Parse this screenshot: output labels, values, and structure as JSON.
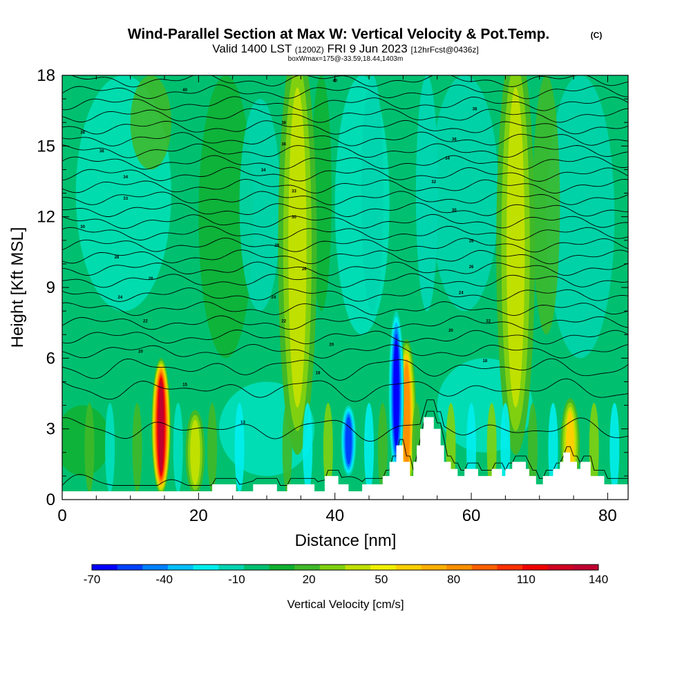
{
  "chart_data": {
    "type": "heatmap",
    "title": "Wind-Parallel Section at Max W: Vertical Velocity & Pot.Temp.",
    "title_mark": "(C)",
    "subtitle_main": "Valid 1400 LST",
    "subtitle_utc": "(1200Z)",
    "subtitle_date": "FRI 9 Jun 2023",
    "subtitle_fcst": "[12hrFcst@0436z]",
    "subtitle_box": "boxWmax=175@-33.59,18.44,1403m",
    "xlabel": "Distance [nm]",
    "ylabel": "Height [Kft MSL]",
    "xlim": [
      0,
      83
    ],
    "ylim": [
      0,
      18
    ],
    "xticks": [
      0,
      20,
      40,
      60,
      80
    ],
    "yticks": [
      0,
      3,
      6,
      9,
      12,
      15,
      18
    ],
    "colorbar": {
      "label": "Vertical Velocity [cm/s]",
      "tick_labels": [
        "-70",
        "-40",
        "-10",
        "20",
        "50",
        "80",
        "110",
        "140"
      ],
      "colors": [
        "#0000ff",
        "#0040ff",
        "#0080ff",
        "#00bfff",
        "#00eeee",
        "#00d5b0",
        "#00c070",
        "#10b030",
        "#40b828",
        "#80d010",
        "#c0e000",
        "#f0f000",
        "#ffd000",
        "#ffb000",
        "#ff9000",
        "#ff6000",
        "#ff3000",
        "#f00000",
        "#d00020",
        "#c00030"
      ]
    },
    "updraft_cores": [
      {
        "x": 14.5,
        "ytop": 6.2,
        "w_max": 140
      },
      {
        "x": 19.5,
        "ytop": 4.0,
        "w_max": 50
      },
      {
        "x": 34.5,
        "ytop": 18,
        "w_max": 50
      },
      {
        "x": 50.5,
        "ytop": 7.0,
        "w_max": 80
      },
      {
        "x": 66.5,
        "ytop": 18,
        "w_max": 55
      },
      {
        "x": 74.5,
        "ytop": 4.5,
        "w_max": 60
      }
    ],
    "downdraft_cores": [
      {
        "x": 42.0,
        "ytop": 4.0,
        "w_min": -60
      },
      {
        "x": 49.0,
        "ytop": 8.0,
        "w_min": -70
      },
      {
        "x": 45.5,
        "ytop": 18,
        "w_min": -20
      },
      {
        "x": 53.5,
        "ytop": 18,
        "w_min": -15
      }
    ],
    "terrain": [
      {
        "x": 0,
        "h": 0.35
      },
      {
        "x": 22,
        "h": 0.35
      },
      {
        "x": 22,
        "h": 0.65
      },
      {
        "x": 25.5,
        "h": 0.65
      },
      {
        "x": 25.5,
        "h": 0.35
      },
      {
        "x": 28,
        "h": 0.35
      },
      {
        "x": 28,
        "h": 0.65
      },
      {
        "x": 31.5,
        "h": 0.65
      },
      {
        "x": 31.5,
        "h": 0.35
      },
      {
        "x": 33,
        "h": 0.35
      },
      {
        "x": 33,
        "h": 0.65
      },
      {
        "x": 37,
        "h": 0.65
      },
      {
        "x": 37,
        "h": 0.35
      },
      {
        "x": 38.5,
        "h": 0.35
      },
      {
        "x": 38.5,
        "h": 1.0
      },
      {
        "x": 40.5,
        "h": 1.0
      },
      {
        "x": 40.5,
        "h": 0.65
      },
      {
        "x": 42,
        "h": 0.65
      },
      {
        "x": 42,
        "h": 0.35
      },
      {
        "x": 44,
        "h": 0.35
      },
      {
        "x": 44,
        "h": 0.65
      },
      {
        "x": 47,
        "h": 0.65
      },
      {
        "x": 47,
        "h": 1.0
      },
      {
        "x": 48,
        "h": 1.0
      },
      {
        "x": 48,
        "h": 1.6
      },
      {
        "x": 49,
        "h": 1.6
      },
      {
        "x": 49,
        "h": 2.3
      },
      {
        "x": 50,
        "h": 2.3
      },
      {
        "x": 50,
        "h": 1.6
      },
      {
        "x": 51,
        "h": 1.6
      },
      {
        "x": 51,
        "h": 1.0
      },
      {
        "x": 51.5,
        "h": 1.0
      },
      {
        "x": 51.5,
        "h": 1.6
      },
      {
        "x": 52,
        "h": 1.6
      },
      {
        "x": 52,
        "h": 2.3
      },
      {
        "x": 52.5,
        "h": 2.3
      },
      {
        "x": 52.5,
        "h": 3.0
      },
      {
        "x": 53,
        "h": 3.0
      },
      {
        "x": 53,
        "h": 3.5
      },
      {
        "x": 54.5,
        "h": 3.5
      },
      {
        "x": 54.5,
        "h": 3.0
      },
      {
        "x": 55.5,
        "h": 3.0
      },
      {
        "x": 55.5,
        "h": 2.3
      },
      {
        "x": 56,
        "h": 2.3
      },
      {
        "x": 56,
        "h": 1.6
      },
      {
        "x": 57,
        "h": 1.6
      },
      {
        "x": 57,
        "h": 1.3
      },
      {
        "x": 58,
        "h": 1.3
      },
      {
        "x": 58,
        "h": 1.0
      },
      {
        "x": 59,
        "h": 1.0
      },
      {
        "x": 59,
        "h": 1.3
      },
      {
        "x": 61,
        "h": 1.3
      },
      {
        "x": 61,
        "h": 1.0
      },
      {
        "x": 63,
        "h": 1.0
      },
      {
        "x": 63,
        "h": 1.3
      },
      {
        "x": 64.5,
        "h": 1.3
      },
      {
        "x": 64.5,
        "h": 1.0
      },
      {
        "x": 65,
        "h": 1.0
      },
      {
        "x": 65,
        "h": 1.3
      },
      {
        "x": 66,
        "h": 1.3
      },
      {
        "x": 66,
        "h": 1.6
      },
      {
        "x": 68,
        "h": 1.6
      },
      {
        "x": 68,
        "h": 1.3
      },
      {
        "x": 68.5,
        "h": 1.3
      },
      {
        "x": 68.5,
        "h": 1.0
      },
      {
        "x": 69.5,
        "h": 1.0
      },
      {
        "x": 69.5,
        "h": 0.65
      },
      {
        "x": 70.5,
        "h": 0.65
      },
      {
        "x": 70.5,
        "h": 1.0
      },
      {
        "x": 72,
        "h": 1.0
      },
      {
        "x": 72,
        "h": 1.3
      },
      {
        "x": 73,
        "h": 1.3
      },
      {
        "x": 73,
        "h": 1.6
      },
      {
        "x": 73.5,
        "h": 1.6
      },
      {
        "x": 73.5,
        "h": 2.0
      },
      {
        "x": 74.5,
        "h": 2.0
      },
      {
        "x": 74.5,
        "h": 1.6
      },
      {
        "x": 75.5,
        "h": 1.6
      },
      {
        "x": 75.5,
        "h": 1.3
      },
      {
        "x": 76,
        "h": 1.3
      },
      {
        "x": 76,
        "h": 1.6
      },
      {
        "x": 77.5,
        "h": 1.6
      },
      {
        "x": 77.5,
        "h": 1.0
      },
      {
        "x": 79.5,
        "h": 1.0
      },
      {
        "x": 79.5,
        "h": 0.65
      },
      {
        "x": 83,
        "h": 0.65
      }
    ],
    "isentrope_base_heights": [
      0.6,
      3.0,
      4.7,
      5.6,
      6.3,
      6.9,
      7.5,
      8.1,
      8.7,
      9.3,
      9.8,
      10.3,
      10.8,
      11.3,
      11.8,
      12.3,
      12.8,
      13.3,
      13.8,
      14.3,
      14.8,
      15.3,
      15.8,
      16.3,
      16.8,
      17.3,
      17.8
    ],
    "isentrope_labels": [
      {
        "x": 18,
        "y": 17.4,
        "text": "40"
      },
      {
        "x": 40,
        "y": 17.8,
        "text": "40"
      },
      {
        "x": 3,
        "y": 15.6,
        "text": "38"
      },
      {
        "x": 32.5,
        "y": 16.0,
        "text": "38"
      },
      {
        "x": 60.5,
        "y": 16.6,
        "text": "38"
      },
      {
        "x": 5.8,
        "y": 14.8,
        "text": "36"
      },
      {
        "x": 32.5,
        "y": 15.1,
        "text": "36"
      },
      {
        "x": 57.5,
        "y": 15.3,
        "text": "36"
      },
      {
        "x": 9.3,
        "y": 13.7,
        "text": "34"
      },
      {
        "x": 29.5,
        "y": 14.0,
        "text": "34"
      },
      {
        "x": 56.5,
        "y": 14.5,
        "text": "34"
      },
      {
        "x": 9.3,
        "y": 12.8,
        "text": "33"
      },
      {
        "x": 34,
        "y": 13.1,
        "text": "33"
      },
      {
        "x": 54.5,
        "y": 13.5,
        "text": "32"
      },
      {
        "x": 3,
        "y": 11.6,
        "text": "30"
      },
      {
        "x": 34,
        "y": 12.0,
        "text": "30"
      },
      {
        "x": 57.5,
        "y": 12.3,
        "text": "30"
      },
      {
        "x": 8,
        "y": 10.3,
        "text": "28"
      },
      {
        "x": 31.5,
        "y": 10.8,
        "text": "28"
      },
      {
        "x": 60,
        "y": 11.0,
        "text": "28"
      },
      {
        "x": 13,
        "y": 9.4,
        "text": "26"
      },
      {
        "x": 35.5,
        "y": 9.8,
        "text": "26"
      },
      {
        "x": 60,
        "y": 9.9,
        "text": "26"
      },
      {
        "x": 8.5,
        "y": 8.6,
        "text": "24"
      },
      {
        "x": 31,
        "y": 8.6,
        "text": "24"
      },
      {
        "x": 58.5,
        "y": 8.8,
        "text": "24"
      },
      {
        "x": 12.2,
        "y": 7.6,
        "text": "22"
      },
      {
        "x": 32.5,
        "y": 7.6,
        "text": "22"
      },
      {
        "x": 62.5,
        "y": 7.6,
        "text": "22"
      },
      {
        "x": 11.5,
        "y": 6.3,
        "text": "20"
      },
      {
        "x": 39.5,
        "y": 6.6,
        "text": "20"
      },
      {
        "x": 57,
        "y": 7.2,
        "text": "20"
      },
      {
        "x": 37.5,
        "y": 5.4,
        "text": "18"
      },
      {
        "x": 62,
        "y": 5.9,
        "text": "18"
      },
      {
        "x": 18,
        "y": 4.9,
        "text": "15"
      },
      {
        "x": 26.5,
        "y": 3.3,
        "text": "13"
      }
    ]
  }
}
